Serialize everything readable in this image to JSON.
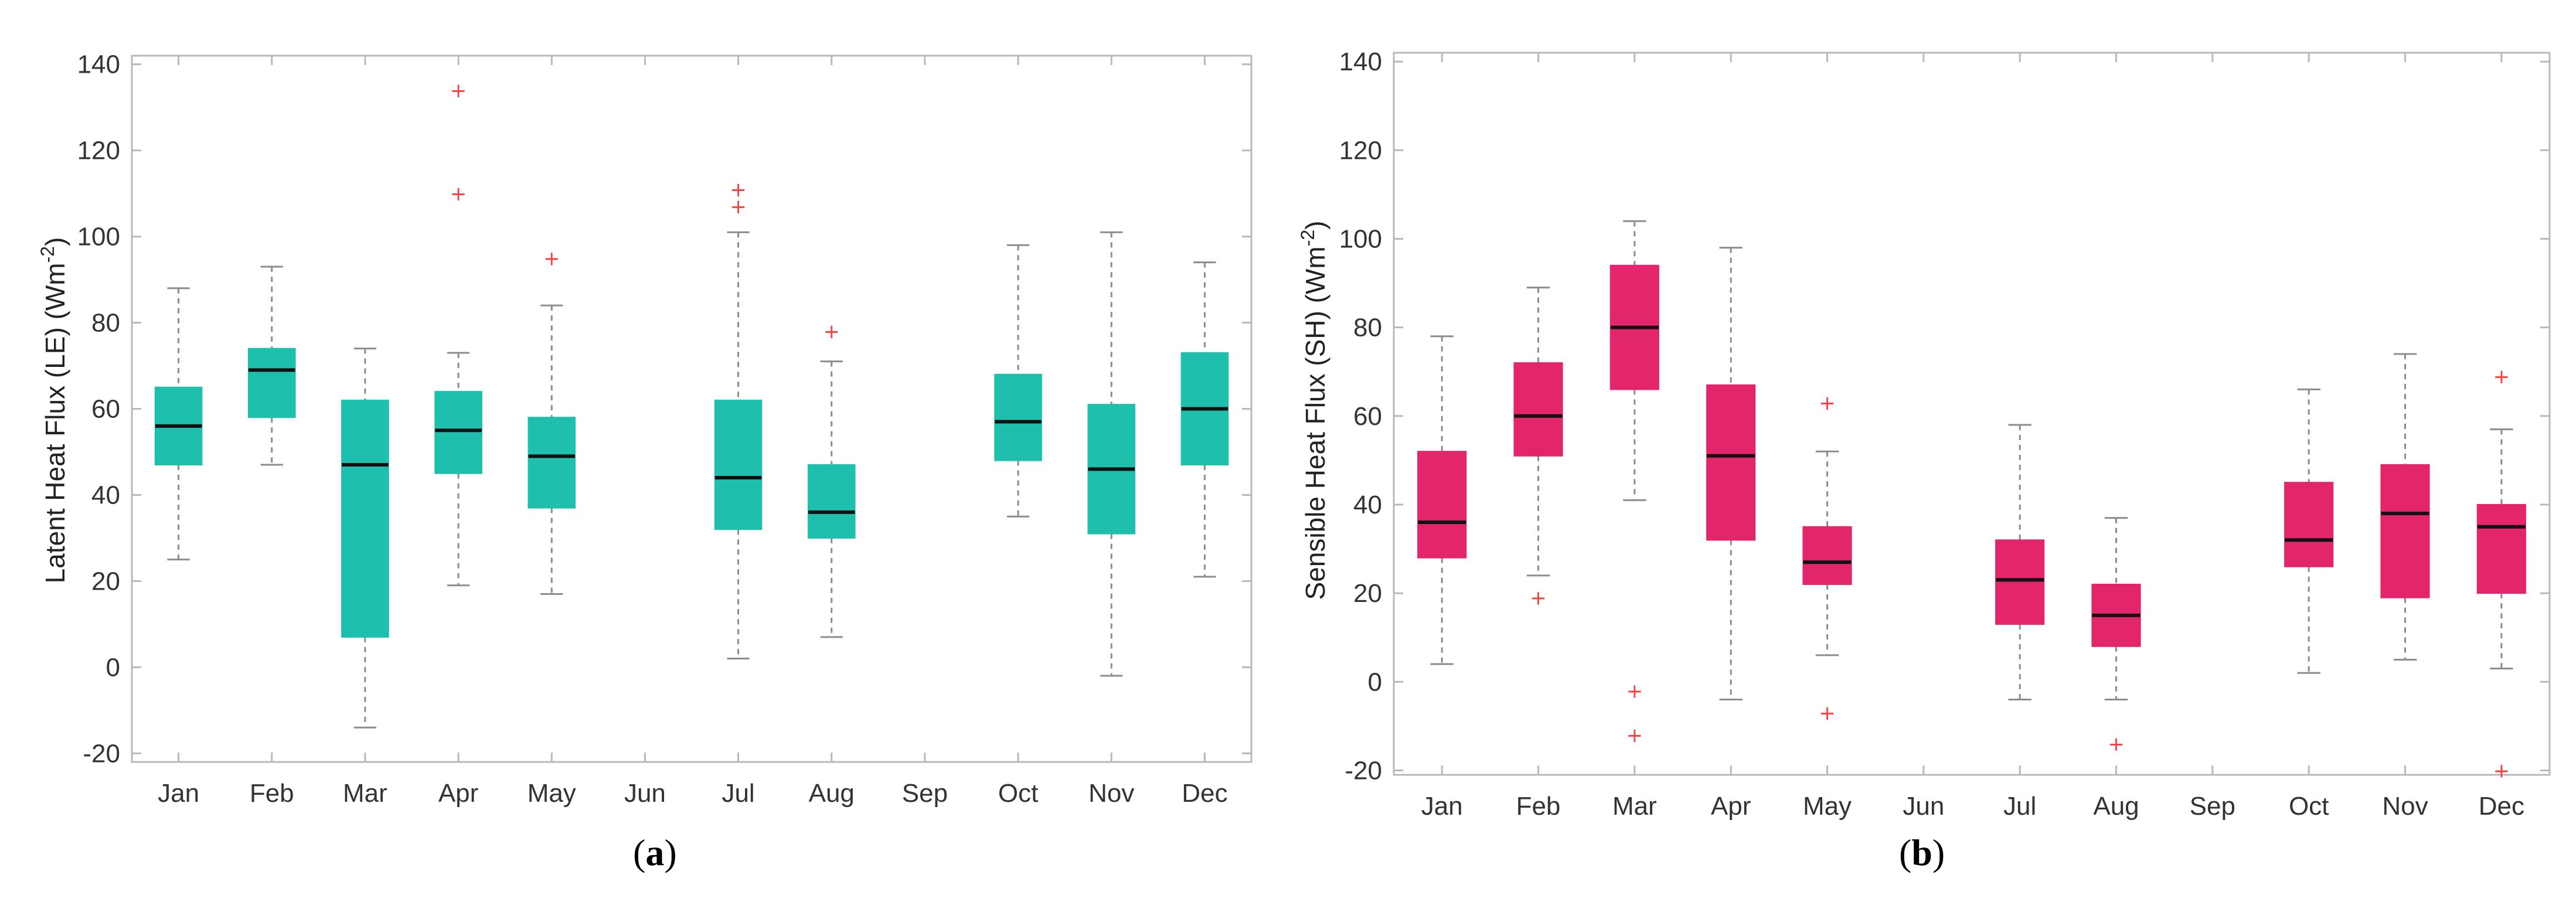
{
  "chart_data": [
    {
      "type": "box",
      "panel": "a",
      "caption": "a",
      "ylabel": "Latent Heat Flux (LE) (Wm",
      "ylabel_sup": "-2",
      "ylabel_close": ")",
      "ylim": [
        -22,
        142
      ],
      "yticks": [
        -20,
        0,
        20,
        40,
        60,
        80,
        100,
        120,
        140
      ],
      "categories": [
        "Jan",
        "Feb",
        "Mar",
        "Apr",
        "May",
        "Jun",
        "Jul",
        "Aug",
        "Sep",
        "Oct",
        "Nov",
        "Dec"
      ],
      "box_color": "#1fbfad",
      "boxes": [
        {
          "month": "Jan",
          "min": 25,
          "q1": 47,
          "median": 56,
          "q3": 65,
          "max": 88,
          "outliers": []
        },
        {
          "month": "Feb",
          "min": 47,
          "q1": 58,
          "median": 69,
          "q3": 74,
          "max": 93,
          "outliers": []
        },
        {
          "month": "Mar",
          "min": -14,
          "q1": 7,
          "median": 47,
          "q3": 62,
          "max": 74,
          "outliers": []
        },
        {
          "month": "Apr",
          "min": 19,
          "q1": 45,
          "median": 55,
          "q3": 64,
          "max": 73,
          "outliers": [
            110,
            134
          ]
        },
        {
          "month": "May",
          "min": 17,
          "q1": 37,
          "median": 49,
          "q3": 58,
          "max": 84,
          "outliers": [
            95
          ]
        },
        null,
        {
          "month": "Jul",
          "min": 2,
          "q1": 32,
          "median": 44,
          "q3": 62,
          "max": 101,
          "outliers": [
            107,
            111
          ]
        },
        {
          "month": "Aug",
          "min": 7,
          "q1": 30,
          "median": 36,
          "q3": 47,
          "max": 71,
          "outliers": [
            78
          ]
        },
        null,
        {
          "month": "Oct",
          "min": 35,
          "q1": 48,
          "median": 57,
          "q3": 68,
          "max": 98,
          "outliers": []
        },
        {
          "month": "Nov",
          "min": -2,
          "q1": 31,
          "median": 46,
          "q3": 61,
          "max": 101,
          "outliers": []
        },
        {
          "month": "Dec",
          "min": 21,
          "q1": 47,
          "median": 60,
          "q3": 73,
          "max": 94,
          "outliers": []
        }
      ]
    },
    {
      "type": "box",
      "panel": "b",
      "caption": "b",
      "ylabel": "Sensible Heat Flux (SH) (Wm",
      "ylabel_sup": "-2",
      "ylabel_close": ")",
      "ylim": [
        -21,
        142
      ],
      "yticks": [
        -20,
        0,
        20,
        40,
        60,
        80,
        100,
        120,
        140
      ],
      "categories": [
        "Jan",
        "Feb",
        "Mar",
        "Apr",
        "May",
        "Jun",
        "Jul",
        "Aug",
        "Sep",
        "Oct",
        "Nov",
        "Dec"
      ],
      "box_color": "#e3256b",
      "boxes": [
        {
          "month": "Jan",
          "min": 4,
          "q1": 28,
          "median": 36,
          "q3": 52,
          "max": 78,
          "outliers": []
        },
        {
          "month": "Feb",
          "min": 24,
          "q1": 51,
          "median": 60,
          "q3": 72,
          "max": 89,
          "outliers": [
            19
          ]
        },
        {
          "month": "Mar",
          "min": 41,
          "q1": 66,
          "median": 80,
          "q3": 94,
          "max": 104,
          "outliers": [
            -2,
            -12
          ]
        },
        {
          "month": "Apr",
          "min": -4,
          "q1": 32,
          "median": 51,
          "q3": 67,
          "max": 98,
          "outliers": []
        },
        {
          "month": "May",
          "min": 6,
          "q1": 22,
          "median": 27,
          "q3": 35,
          "max": 52,
          "outliers": [
            63,
            -7
          ]
        },
        null,
        {
          "month": "Jul",
          "min": -4,
          "q1": 13,
          "median": 23,
          "q3": 32,
          "max": 58,
          "outliers": []
        },
        {
          "month": "Aug",
          "min": -4,
          "q1": 8,
          "median": 15,
          "q3": 22,
          "max": 37,
          "outliers": [
            -14
          ]
        },
        null,
        {
          "month": "Oct",
          "min": 2,
          "q1": 26,
          "median": 32,
          "q3": 45,
          "max": 66,
          "outliers": []
        },
        {
          "month": "Nov",
          "min": 5,
          "q1": 19,
          "median": 38,
          "q3": 49,
          "max": 74,
          "outliers": []
        },
        {
          "month": "Dec",
          "min": 3,
          "q1": 20,
          "median": 35,
          "q3": 40,
          "max": 57,
          "outliers": [
            69,
            -20
          ]
        }
      ]
    }
  ]
}
